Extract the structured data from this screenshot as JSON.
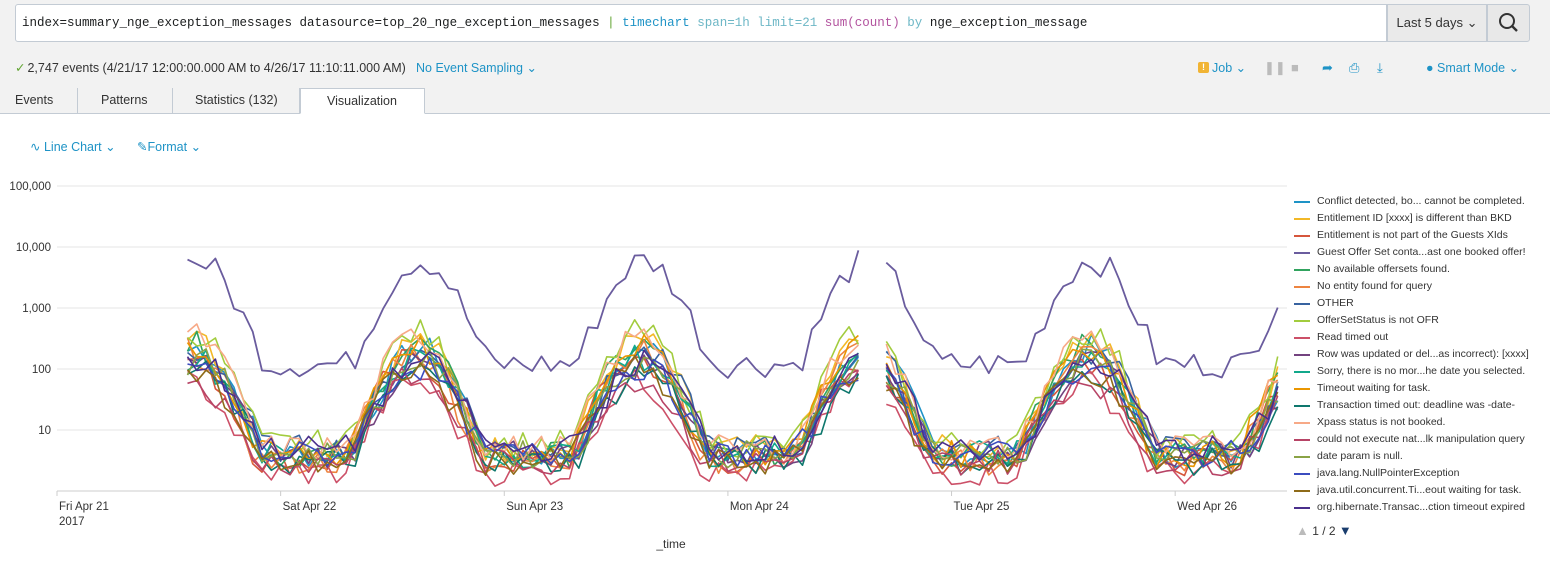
{
  "search": {
    "q_index": "index=summary_nge_exception_messages datasource=top_20_nge_exception_messages",
    "q_pipe": "|",
    "q_cmd": "timechart",
    "q_arg1": "span=1h",
    "q_arg2": "limit=21",
    "q_fn": "sum(count)",
    "q_by": "by",
    "q_field": "nge_exception_message",
    "time_range": "Last 5 days",
    "search_icon": "search-icon"
  },
  "status": {
    "events": "2,747 events (4/21/17 12:00:00.000 AM to 4/26/17 11:10:11.000 AM)",
    "sampling": "No Event Sampling",
    "job": "Job",
    "smart_mode": "Smart Mode"
  },
  "tabs": [
    {
      "label": "Events"
    },
    {
      "label": "Patterns"
    },
    {
      "label": "Statistics (132)"
    },
    {
      "label": "Visualization",
      "active": true
    }
  ],
  "viz": {
    "chart_type_label": "Line Chart",
    "format_label": "Format"
  },
  "pager": {
    "label": "1 / 2"
  },
  "chart_data": {
    "type": "line",
    "xlabel": "_time",
    "ylabel": "",
    "yscale": "log",
    "ylim": [
      1,
      100000
    ],
    "y_ticks": [
      "100,000",
      "10,000",
      "1,000",
      "100",
      "10"
    ],
    "y_tick_values": [
      100000,
      10000,
      1000,
      100,
      10
    ],
    "x_ticks": [
      {
        "label": "Fri Apr 21",
        "sub": "2017",
        "t": 0
      },
      {
        "label": "Sat Apr 22",
        "sub": "",
        "t": 24
      },
      {
        "label": "Sun Apr 23",
        "sub": "",
        "t": 48
      },
      {
        "label": "Mon Apr 24",
        "sub": "",
        "t": 72
      },
      {
        "label": "Tue Apr 25",
        "sub": "",
        "t": 96
      },
      {
        "label": "Wed Apr 26",
        "sub": "",
        "t": 120
      }
    ],
    "x_range_hours": [
      0,
      132
    ],
    "data_hours": [
      14,
      131
    ],
    "gap_hours": [
      87,
      88
    ],
    "legend_placement": "right",
    "series": [
      {
        "name": "Conflict detected, bo... cannot be completed.",
        "color": "#1e93c6",
        "peak": 220,
        "trough": 4
      },
      {
        "name": "Entitlement ID [xxxx] is different than BKD",
        "color": "#f2b827",
        "peak": 300,
        "trough": 5
      },
      {
        "name": "Entitlement is not part of the Guests XIds",
        "color": "#d6563c",
        "peak": 150,
        "trough": 3
      },
      {
        "name": "Guest Offer Set conta...ast one booked offer!",
        "color": "#6a5c9e",
        "peak": 6000,
        "trough": 120
      },
      {
        "name": "No available offersets found.",
        "color": "#31a35f",
        "peak": 250,
        "trough": 4
      },
      {
        "name": "No entity found for query",
        "color": "#ed8440",
        "peak": 200,
        "trough": 3
      },
      {
        "name": "OTHER",
        "color": "#3863a0",
        "peak": 180,
        "trough": 5
      },
      {
        "name": "OfferSetStatus is not OFR",
        "color": "#a2cc3e",
        "peak": 400,
        "trough": 6
      },
      {
        "name": "Read timed out",
        "color": "#cc5068",
        "peak": 60,
        "trough": 2
      },
      {
        "name": "Row was updated or del...as incorrect): [xxxx]",
        "color": "#73427f",
        "peak": 120,
        "trough": 4
      },
      {
        "name": "Sorry, there is no mor...he date you selected.",
        "color": "#11a88b",
        "peak": 160,
        "trough": 4
      },
      {
        "name": "Timeout waiting for task.",
        "color": "#ea9600",
        "peak": 250,
        "trough": 4
      },
      {
        "name": "Transaction timed out: deadline was -date-",
        "color": "#0e776d",
        "peak": 90,
        "trough": 3
      },
      {
        "name": "Xpass status is not booked.",
        "color": "#f7a987",
        "peak": 350,
        "trough": 5
      },
      {
        "name": "could not execute nat...lk manipulation query",
        "color": "#b74466",
        "peak": 70,
        "trough": 3
      },
      {
        "name": "date param is null.",
        "color": "#8aa346",
        "peak": 140,
        "trough": 4
      },
      {
        "name": "java.lang.NullPointerException",
        "color": "#3b4cbf",
        "peak": 110,
        "trough": 4
      },
      {
        "name": "java.util.concurrent.Ti...eout waiting for task.",
        "color": "#8e6b19",
        "peak": 100,
        "trough": 3
      },
      {
        "name": "org.hibernate.Transac...ction timeout expired",
        "color": "#4a2f8c",
        "peak": 130,
        "trough": 5
      }
    ]
  }
}
